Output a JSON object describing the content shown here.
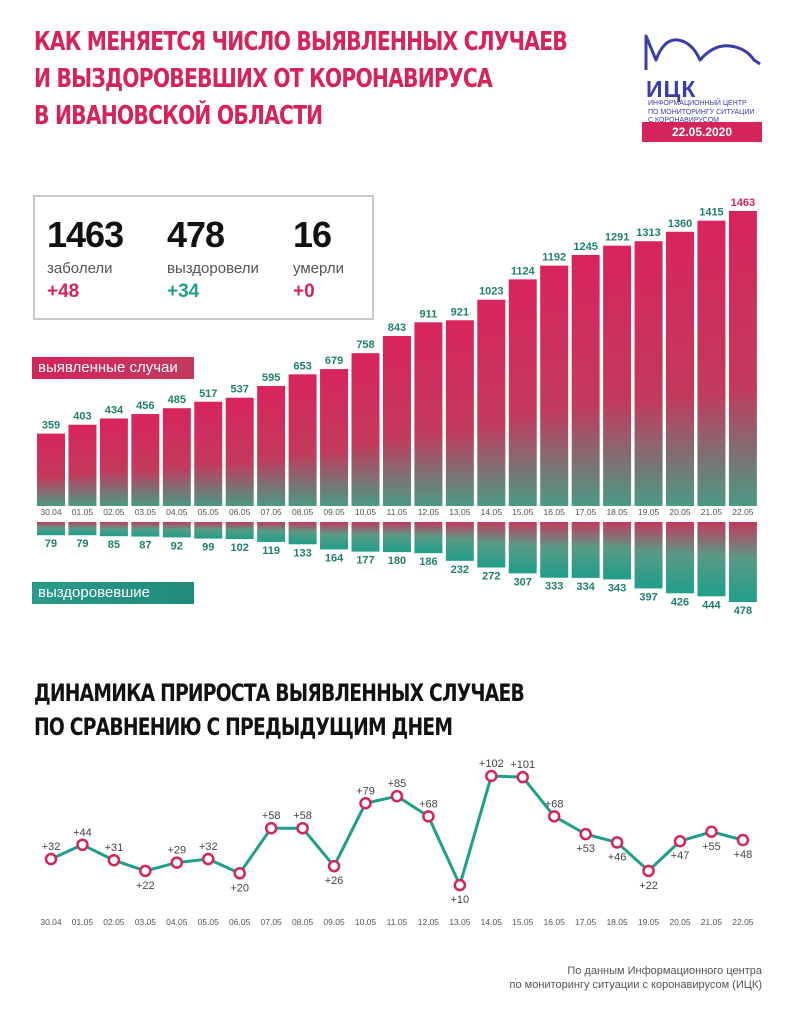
{
  "header": {
    "title_lines": [
      "КАК МЕНЯЕТСЯ ЧИСЛО ВЫЯВЛЕННЫХ СЛУЧАЕВ",
      "И ВЫЗДОРОВЕВШИХ ОТ КОРОНАВИРУСА",
      "В ИВАНОВСКОЙ ОБЛАСТИ"
    ]
  },
  "logo": {
    "name": "ИЦК",
    "subtitle_lines": [
      "Информационный центр",
      "по мониторингу ситуации",
      "с коронавирусом"
    ],
    "date": "22.05.2020",
    "icon": "wave-logo-icon"
  },
  "summary": {
    "cases": {
      "value": "1463",
      "label": "заболели",
      "delta": "+48"
    },
    "recovered": {
      "value": "478",
      "label": "выздоровели",
      "delta": "+34"
    },
    "deaths": {
      "value": "16",
      "label": "умерли",
      "delta": "+0"
    }
  },
  "labels": {
    "cases": "выявленные случаи",
    "recovered": "выздоровевшие"
  },
  "section2": {
    "title_lines": [
      "ДИНАМИКА ПРИРОСТА ВЫЯВЛЕННЫХ СЛУЧАЕВ",
      "ПО СРАВНЕНИЮ С ПРЕДЫДУЩИМ ДНЕМ"
    ]
  },
  "source": {
    "lines": [
      "По данным Информационного центра",
      "по мониторингу ситуации с коронавирусом (ИЦК)"
    ]
  },
  "colors": {
    "accent": "#d4245a",
    "teal": "#1f9e89",
    "logo": "#3a3ea8"
  },
  "chart_data": [
    {
      "type": "bar",
      "categories": [
        "30.04",
        "01.05",
        "02.05",
        "03.05",
        "04.05",
        "05.05",
        "06.05",
        "07.05",
        "08.05",
        "09.05",
        "10.05",
        "11.05",
        "12.05",
        "13.05",
        "14.05",
        "15.05",
        "16.05",
        "17.05",
        "18.05",
        "19.05",
        "20.05",
        "21.05",
        "22.05"
      ],
      "series": [
        {
          "name": "выявленные случаи",
          "values": [
            359,
            403,
            434,
            456,
            485,
            517,
            537,
            595,
            653,
            679,
            758,
            843,
            911,
            921,
            1023,
            1124,
            1192,
            1245,
            1291,
            1313,
            1360,
            1415,
            1463
          ]
        },
        {
          "name": "выздоровевшие",
          "values": [
            79,
            79,
            85,
            87,
            92,
            99,
            102,
            119,
            133,
            164,
            177,
            180,
            186,
            232,
            272,
            307,
            333,
            334,
            343,
            397,
            426,
            444,
            478
          ]
        }
      ]
    },
    {
      "type": "line",
      "x": [
        "30.04",
        "01.05",
        "02.05",
        "03.05",
        "04.05",
        "05.05",
        "06.05",
        "07.05",
        "08.05",
        "09.05",
        "10.05",
        "11.05",
        "12.05",
        "13.05",
        "14.05",
        "15.05",
        "16.05",
        "17.05",
        "18.05",
        "19.05",
        "20.05",
        "21.05",
        "22.05"
      ],
      "values": [
        32,
        44,
        31,
        22,
        29,
        32,
        20,
        58,
        58,
        26,
        79,
        85,
        68,
        10,
        102,
        101,
        68,
        53,
        46,
        22,
        47,
        55,
        48
      ],
      "labels": [
        "+32",
        "+44",
        "+31",
        "+22",
        "+29",
        "+32",
        "+20",
        "+58",
        "+58",
        "+26",
        "+79",
        "+85",
        "+68",
        "+10",
        "+102",
        "+101",
        "+68",
        "+53",
        "+46",
        "+22",
        "+47",
        "+55",
        "+48"
      ]
    }
  ]
}
